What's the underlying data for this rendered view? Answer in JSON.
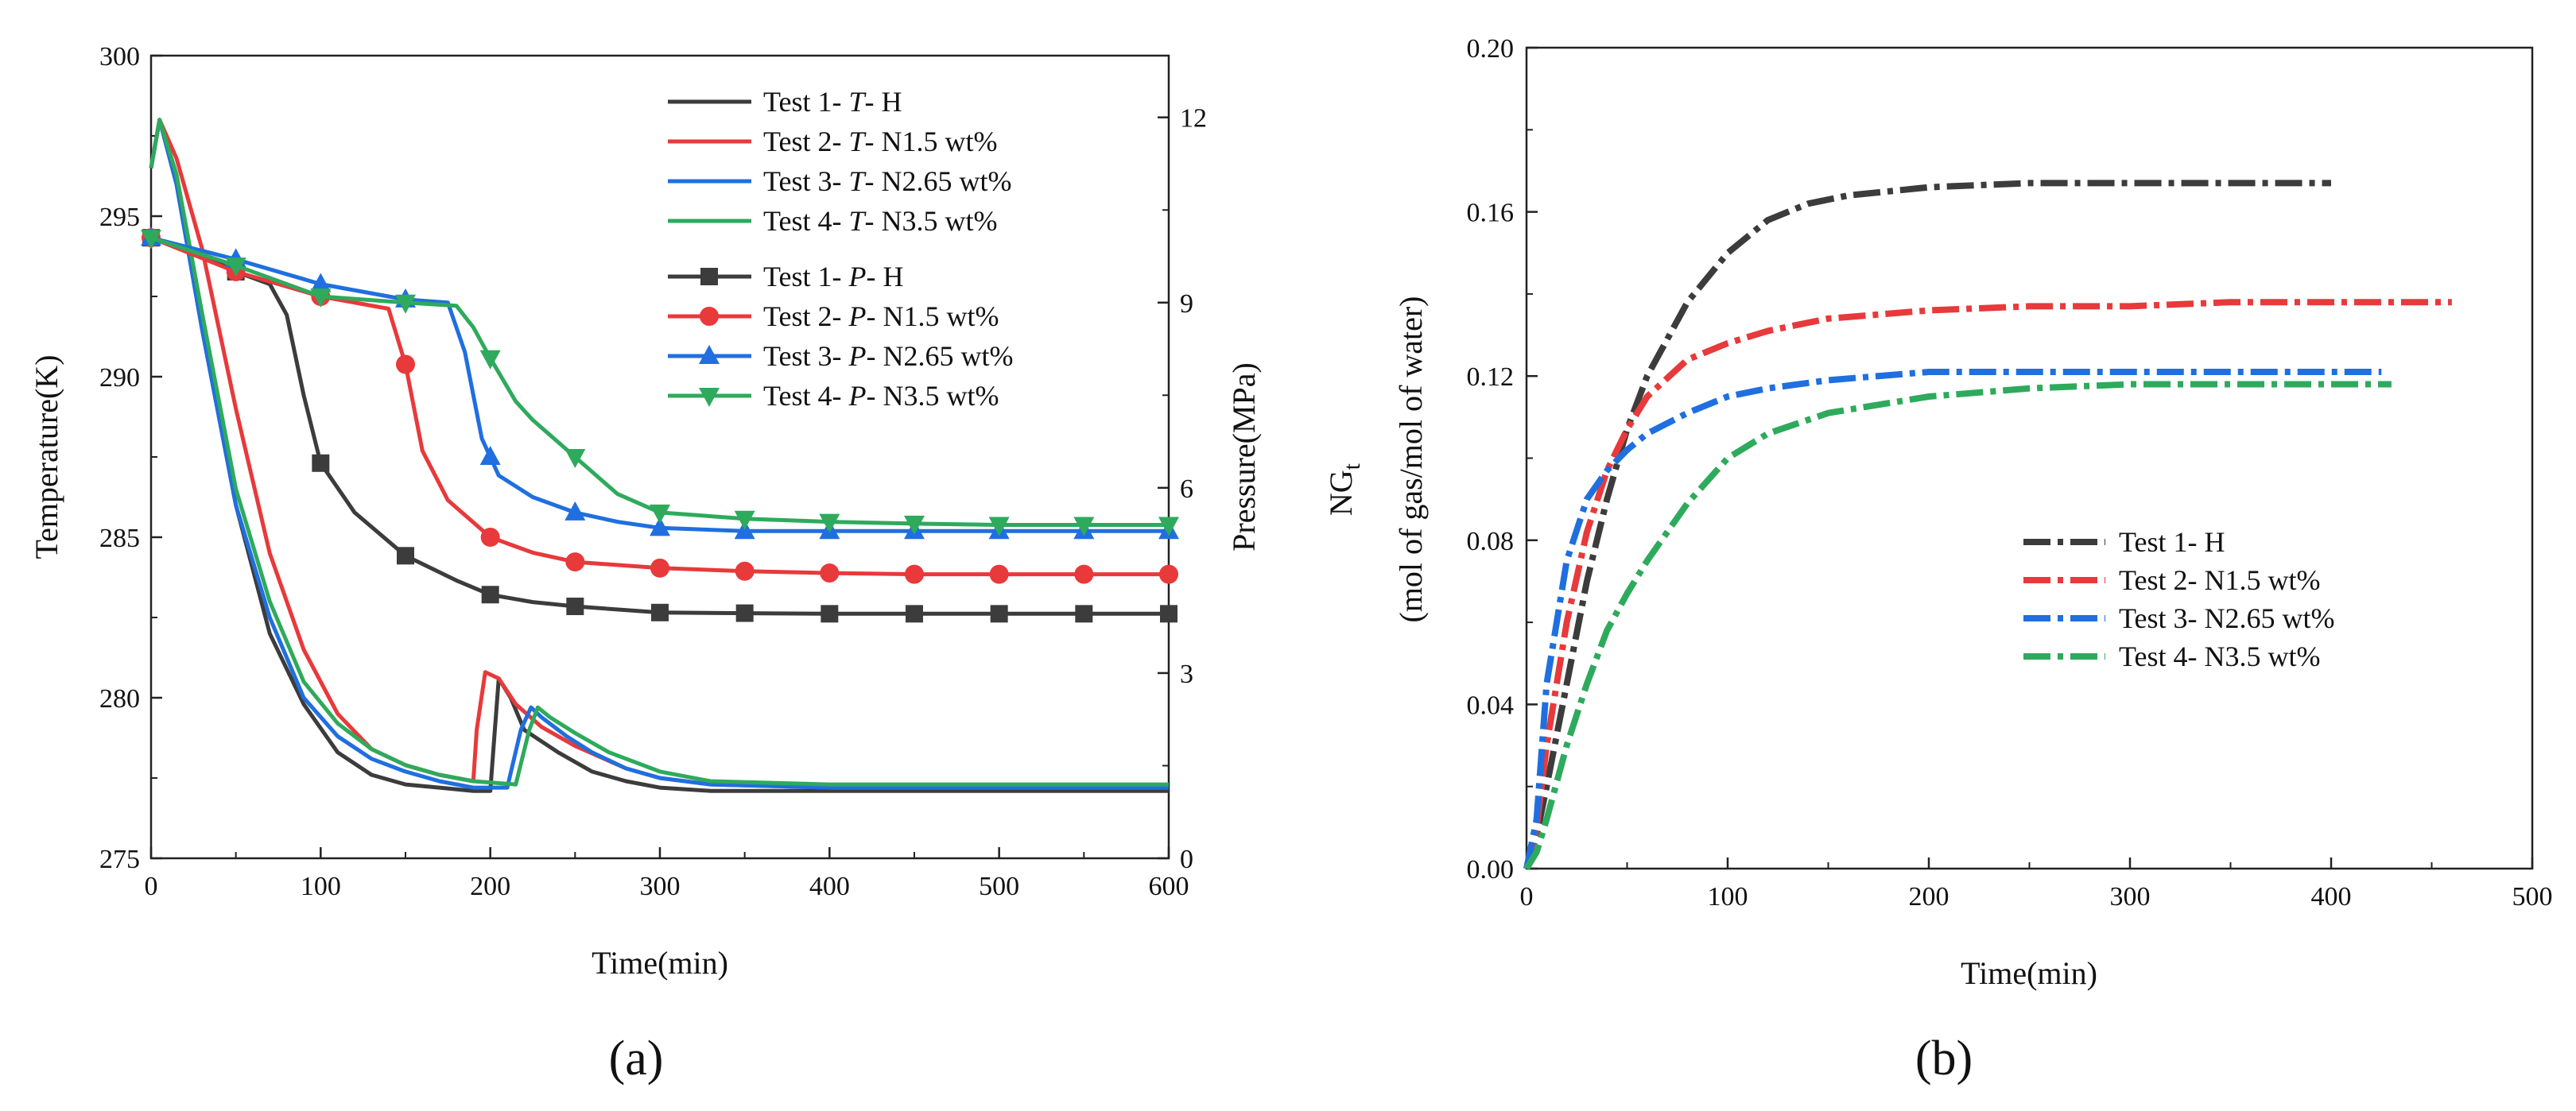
{
  "colors": {
    "test1": "#3c3c3c",
    "test2": "#e8393b",
    "test3": "#1f6fe0",
    "test4": "#2eaa5c"
  },
  "chart_data": [
    {
      "panel": "(a)",
      "type": "line",
      "xlabel": "Time(min)",
      "ylabel_left": "Temperature(K)",
      "ylabel_right": "Pressure(MPa)",
      "xlim": [
        0,
        600
      ],
      "ylim_left": [
        275,
        300
      ],
      "ylim_right": [
        0,
        13
      ],
      "xticks": [
        "0",
        "100",
        "200",
        "300",
        "400",
        "500",
        "600"
      ],
      "yticks_left": [
        "275",
        "280",
        "285",
        "290",
        "295",
        "300"
      ],
      "yticks_right": [
        "0",
        "3",
        "6",
        "9",
        "12"
      ],
      "legend_position": "top-right",
      "temperature_series": [
        {
          "name": "Test 1- T- H",
          "prefix": "Test 1- ",
          "var": "T",
          "suffix": "- H",
          "x": [
            0,
            5,
            15,
            30,
            50,
            70,
            90,
            110,
            130,
            150,
            170,
            190,
            200,
            202,
            205,
            212,
            220,
            240,
            260,
            280,
            300,
            330,
            400,
            600
          ],
          "y": [
            296.5,
            298.0,
            296.0,
            291.5,
            286.0,
            282.0,
            279.8,
            278.3,
            277.6,
            277.3,
            277.2,
            277.1,
            277.1,
            278.5,
            280.6,
            280.0,
            279.0,
            278.3,
            277.7,
            277.4,
            277.2,
            277.1,
            277.1,
            277.1
          ]
        },
        {
          "name": "Test 2- T- N1.5 wt%",
          "prefix": "Test 2- ",
          "var": "T",
          "suffix": "- N1.5 wt%",
          "x": [
            0,
            5,
            15,
            30,
            50,
            70,
            90,
            110,
            130,
            150,
            170,
            190,
            192,
            197,
            205,
            215,
            230,
            250,
            280,
            300,
            330,
            400,
            600
          ],
          "y": [
            296.5,
            298.0,
            296.8,
            294.0,
            289.0,
            284.5,
            281.5,
            279.5,
            278.4,
            277.9,
            277.6,
            277.4,
            279.0,
            280.8,
            280.6,
            279.8,
            279.1,
            278.5,
            277.8,
            277.5,
            277.3,
            277.2,
            277.2
          ]
        },
        {
          "name": "Test 3- T- N2.65 wt%",
          "prefix": "Test 3- ",
          "var": "T",
          "suffix": "- N2.65 wt%",
          "x": [
            0,
            5,
            15,
            30,
            50,
            70,
            90,
            110,
            130,
            150,
            170,
            190,
            210,
            218,
            224,
            230,
            245,
            260,
            280,
            300,
            330,
            400,
            600
          ],
          "y": [
            296.5,
            298.0,
            296.0,
            291.5,
            286.0,
            282.5,
            280.0,
            278.8,
            278.1,
            277.7,
            277.4,
            277.2,
            277.2,
            279.0,
            279.7,
            279.4,
            278.8,
            278.3,
            277.8,
            277.5,
            277.3,
            277.2,
            277.2
          ]
        },
        {
          "name": "Test 4- T- N3.5 wt%",
          "prefix": "Test 4- ",
          "var": "T",
          "suffix": "- N3.5 wt%",
          "x": [
            0,
            5,
            15,
            30,
            50,
            70,
            90,
            110,
            130,
            150,
            170,
            190,
            215,
            223,
            228,
            235,
            250,
            270,
            300,
            330,
            400,
            600
          ],
          "y": [
            296.5,
            298.0,
            296.3,
            292.0,
            286.5,
            283.0,
            280.5,
            279.2,
            278.4,
            277.9,
            277.6,
            277.4,
            277.3,
            279.0,
            279.7,
            279.4,
            278.9,
            278.3,
            277.7,
            277.4,
            277.3,
            277.3
          ]
        }
      ],
      "pressure_series": [
        {
          "name": "Test 1- P- H",
          "prefix": "Test 1- ",
          "var": "P",
          "suffix": "- H",
          "x": [
            0,
            20,
            50,
            70,
            80,
            90,
            100,
            120,
            150,
            180,
            200,
            225,
            250,
            300,
            350,
            400,
            450,
            500,
            550,
            600
          ],
          "y": [
            10.05,
            9.9,
            9.5,
            9.3,
            8.8,
            7.5,
            6.4,
            5.6,
            4.9,
            4.5,
            4.27,
            4.15,
            4.08,
            3.98,
            3.97,
            3.96,
            3.96,
            3.96,
            3.96,
            3.96
          ],
          "markers_x": [
            0,
            50,
            100,
            150,
            200,
            250,
            300,
            350,
            400,
            450,
            500,
            550,
            600
          ],
          "marker": "square"
        },
        {
          "name": "Test 2- P- N1.5 wt%",
          "prefix": "Test 2- ",
          "var": "P",
          "suffix": "- N1.5 wt%",
          "x": [
            0,
            50,
            100,
            140,
            150,
            160,
            175,
            200,
            225,
            250,
            300,
            350,
            400,
            450,
            500,
            550,
            600
          ],
          "y": [
            10.05,
            9.5,
            9.1,
            8.9,
            8.0,
            6.6,
            5.8,
            5.2,
            4.95,
            4.8,
            4.7,
            4.65,
            4.62,
            4.6,
            4.6,
            4.6,
            4.6
          ],
          "markers_x": [
            0,
            50,
            100,
            150,
            200,
            250,
            300,
            350,
            400,
            450,
            500,
            550,
            600
          ],
          "marker": "circle"
        },
        {
          "name": "Test 3- P- N2.65 wt%",
          "prefix": "Test 3- ",
          "var": "P",
          "suffix": "- N2.65 wt%",
          "x": [
            0,
            50,
            100,
            150,
            175,
            185,
            195,
            205,
            225,
            250,
            275,
            300,
            350,
            400,
            450,
            500,
            550,
            600
          ],
          "y": [
            10.05,
            9.7,
            9.3,
            9.05,
            9.0,
            8.2,
            6.8,
            6.2,
            5.85,
            5.6,
            5.45,
            5.35,
            5.3,
            5.3,
            5.3,
            5.3,
            5.3,
            5.3
          ],
          "markers_x": [
            0,
            50,
            100,
            150,
            200,
            250,
            300,
            350,
            400,
            450,
            500,
            550,
            600
          ],
          "marker": "triangle-up"
        },
        {
          "name": "Test 4- P- N3.5 wt%",
          "prefix": "Test 4- ",
          "var": "P",
          "suffix": "- N3.5 wt%",
          "x": [
            0,
            50,
            100,
            150,
            180,
            190,
            200,
            215,
            225,
            250,
            275,
            300,
            350,
            400,
            450,
            500,
            550,
            600
          ],
          "y": [
            10.05,
            9.6,
            9.1,
            9.0,
            8.95,
            8.6,
            8.1,
            7.4,
            7.1,
            6.5,
            5.9,
            5.6,
            5.5,
            5.45,
            5.42,
            5.4,
            5.4,
            5.4
          ],
          "markers_x": [
            0,
            50,
            100,
            150,
            200,
            250,
            300,
            350,
            400,
            450,
            500,
            550,
            600
          ],
          "marker": "triangle-down"
        }
      ]
    },
    {
      "panel": "(b)",
      "type": "line",
      "xlabel": "Time(min)",
      "ylabel_main": "NG",
      "ylabel_sub": "t",
      "ylabel_second": "(mol of gas/mol of water)",
      "xlim": [
        0,
        500
      ],
      "ylim": [
        0,
        0.2
      ],
      "xticks": [
        "0",
        "100",
        "200",
        "300",
        "400",
        "500"
      ],
      "yticks": [
        "0.00",
        "0.04",
        "0.08",
        "0.12",
        "0.16",
        "0.20"
      ],
      "legend_position": "center-right",
      "series": [
        {
          "name": "Test 1- H",
          "x": [
            0,
            5,
            10,
            20,
            30,
            40,
            50,
            60,
            80,
            100,
            120,
            140,
            160,
            180,
            200,
            250,
            300,
            350,
            400
          ],
          "y": [
            0,
            0.008,
            0.02,
            0.045,
            0.07,
            0.09,
            0.107,
            0.12,
            0.138,
            0.15,
            0.158,
            0.162,
            0.164,
            0.165,
            0.166,
            0.167,
            0.167,
            0.167,
            0.167
          ]
        },
        {
          "name": "Test 2- N1.5 wt%",
          "x": [
            0,
            5,
            10,
            20,
            30,
            40,
            50,
            60,
            80,
            100,
            120,
            150,
            200,
            250,
            300,
            350,
            400,
            460
          ],
          "y": [
            0,
            0.01,
            0.03,
            0.06,
            0.082,
            0.097,
            0.107,
            0.115,
            0.124,
            0.128,
            0.131,
            0.134,
            0.136,
            0.137,
            0.137,
            0.138,
            0.138,
            0.138
          ]
        },
        {
          "name": "Test 3- N2.65 wt%",
          "x": [
            0,
            5,
            10,
            20,
            30,
            40,
            50,
            60,
            80,
            100,
            120,
            150,
            200,
            250,
            300,
            350,
            400,
            425
          ],
          "y": [
            0,
            0.012,
            0.045,
            0.075,
            0.09,
            0.097,
            0.102,
            0.106,
            0.111,
            0.115,
            0.117,
            0.119,
            0.121,
            0.121,
            0.121,
            0.121,
            0.121,
            0.121
          ]
        },
        {
          "name": "Test 4- N3.5 wt%",
          "x": [
            0,
            5,
            10,
            20,
            30,
            40,
            50,
            60,
            80,
            100,
            120,
            150,
            200,
            250,
            300,
            350,
            400,
            430
          ],
          "y": [
            0,
            0.004,
            0.012,
            0.03,
            0.045,
            0.058,
            0.067,
            0.075,
            0.089,
            0.1,
            0.106,
            0.111,
            0.115,
            0.117,
            0.118,
            0.118,
            0.118,
            0.118
          ]
        }
      ]
    }
  ]
}
